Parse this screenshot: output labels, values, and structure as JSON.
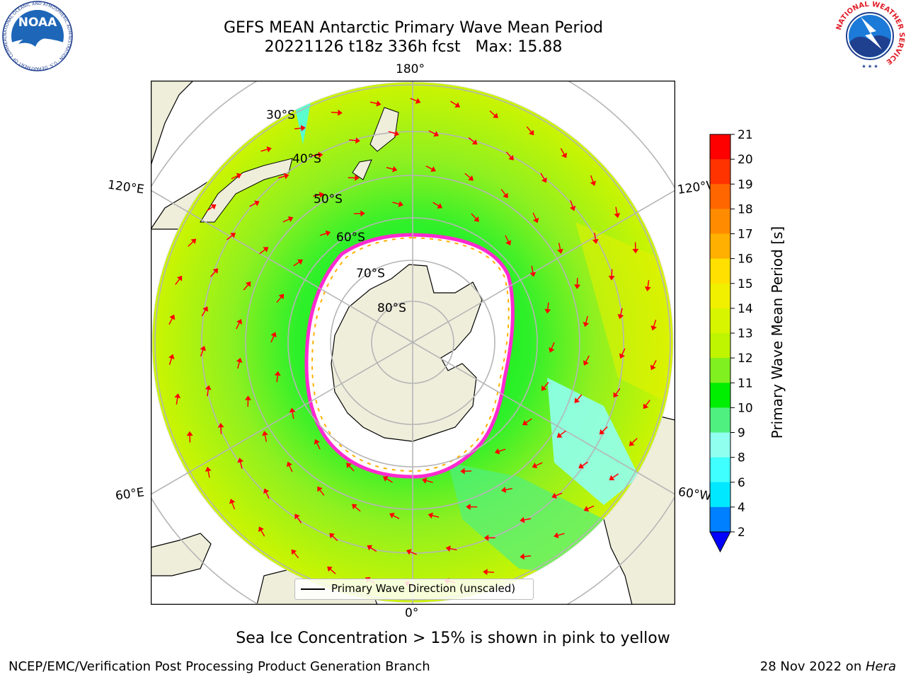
{
  "header": {
    "title": "GEFS MEAN Antarctic Primary Wave Mean Period",
    "subtitle": "20221126 t18z 336h fcst   Max: 15.88"
  },
  "logos": {
    "noaa": "NOAA",
    "noaa_ring": "NATIONAL OCEANIC AND ATMOSPHERIC ADMINISTRATION · U.S. DEPARTMENT OF COMMERCE",
    "nws_ring": "NATIONAL WEATHER SERVICE"
  },
  "map": {
    "projection": "south-polar-stereographic",
    "lon_labels": {
      "top": "180°",
      "bottom": "0°",
      "left_upper": "120°E",
      "left_lower": "60°E",
      "right_upper": "120°W",
      "right_lower": "60°W"
    },
    "lat_labels": [
      "30°S",
      "40°S",
      "50°S",
      "60°S",
      "70°S",
      "80°S"
    ],
    "legend": "Primary Wave Direction (unscaled)",
    "colors": {
      "land": "#efeedb",
      "ice": "#ffffff",
      "ocean_background": "#ffffff",
      "grid": "#b5b5b5",
      "arrows": "#ff0000"
    }
  },
  "colorbar": {
    "title": "Primary Wave Mean Period [s]",
    "ticks": [
      "21",
      "20",
      "19",
      "18",
      "17",
      "16",
      "15",
      "14",
      "13",
      "12",
      "11",
      "10",
      "9",
      "8",
      "6",
      "4",
      "2"
    ],
    "colors": [
      "#ff0000",
      "#ff3300",
      "#ff6600",
      "#ff8c00",
      "#ffb000",
      "#ffe000",
      "#f0f000",
      "#d8f500",
      "#bff500",
      "#80f020",
      "#00ee00",
      "#50f080",
      "#90fff0",
      "#40ffff",
      "#00e8ff",
      "#0080ff",
      "#0000ff"
    ]
  },
  "caption": "Sea Ice Concentration > 15% is shown in pink to yellow",
  "footer": {
    "left": "NCEP/EMC/Verification Post Processing Product Generation Branch",
    "right_prefix": "28 Nov 2022 on ",
    "right_host": "Hera"
  }
}
